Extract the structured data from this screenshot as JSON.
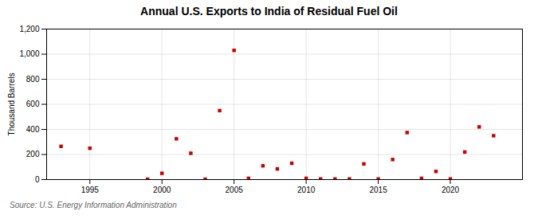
{
  "chart_data": {
    "type": "scatter",
    "title": "Annual U.S. Exports to India of Residual Fuel Oil",
    "ylabel": "Thousand Barrels",
    "source": "Source: U.S. Energy Information Administration",
    "x": [
      1993,
      1995,
      1999,
      2000,
      2001,
      2002,
      2003,
      2004,
      2005,
      2006,
      2007,
      2008,
      2009,
      2010,
      2011,
      2012,
      2013,
      2014,
      2015,
      2016,
      2017,
      2018,
      2019,
      2020,
      2021,
      2022,
      2023
    ],
    "values": [
      265,
      250,
      3,
      50,
      325,
      210,
      3,
      550,
      1030,
      10,
      110,
      85,
      130,
      10,
      5,
      5,
      5,
      125,
      5,
      160,
      375,
      10,
      65,
      5,
      220,
      420,
      350
    ],
    "color": "#cc0000",
    "marker": "square",
    "xlim": [
      1992,
      2025
    ],
    "xticks": [
      1995,
      2000,
      2005,
      2010,
      2015,
      2020
    ],
    "ylim": [
      0,
      1200
    ],
    "yticks": [
      0,
      200,
      400,
      600,
      800,
      {
        "value": 1000,
        "label": "1,000"
      },
      {
        "value": 1200,
        "label": "1,200"
      }
    ],
    "grid": true
  }
}
